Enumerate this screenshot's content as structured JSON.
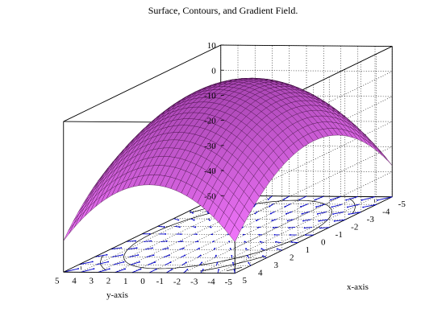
{
  "chart_data": {
    "type": "surface3d",
    "title": "Surface, Contours, and Gradient Field.",
    "xlabel": "x-axis",
    "ylabel": "y-axis",
    "zlabel": "",
    "x_range": [
      -5,
      5
    ],
    "y_range": [
      -5,
      5
    ],
    "z_range": [
      -50,
      10
    ],
    "surface_function": "z = 10 - x^2 - y^2 (approx.)",
    "x_ticks": [
      "-5",
      "-4",
      "-3",
      "-2",
      "-1",
      "0",
      "1",
      "2",
      "3",
      "4",
      "5"
    ],
    "y_ticks": [
      "-5",
      "-4",
      "-3",
      "-2",
      "-1",
      "0",
      "1",
      "2",
      "3",
      "4",
      "5"
    ],
    "z_ticks": [
      "-50",
      "-40",
      "-30",
      "-20",
      "-10",
      "0",
      "10"
    ],
    "grid": true,
    "contour_levels": [
      -10,
      -20,
      -30,
      -40
    ],
    "colors": {
      "surface": "#ff80ff",
      "mesh": "#3a0a3a",
      "contour": "#000000",
      "gradient_arrows": "#0000cc"
    }
  }
}
